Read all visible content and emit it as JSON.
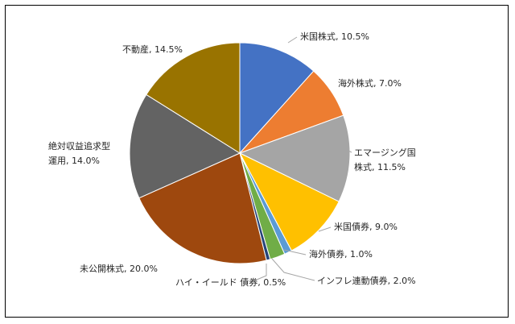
{
  "chart_data": {
    "type": "pie",
    "title": "",
    "slices": [
      {
        "label": "米国株式",
        "value": 10.5,
        "display": "米国株式, 10.5%",
        "color": "#4472C4"
      },
      {
        "label": "海外株式",
        "value": 7.0,
        "display": "海外株式, 7.0%",
        "color": "#ED7D31"
      },
      {
        "label": "エマージング国株式",
        "value": 11.5,
        "display_lines": [
          "エマージング国",
          "株式, 11.5%"
        ],
        "color": "#A5A5A5"
      },
      {
        "label": "米国債券",
        "value": 9.0,
        "display": "米国債券, 9.0%",
        "color": "#FFC000"
      },
      {
        "label": "海外債券",
        "value": 1.0,
        "display": "海外債券, 1.0%",
        "color": "#5B9BD5"
      },
      {
        "label": "インフレ連動債券",
        "value": 2.0,
        "display": "インフレ連動債券, 2.0%",
        "color": "#70AD47"
      },
      {
        "label": "ハイ・イールド債券",
        "value": 0.5,
        "display": "ハイ・イールド 債券, 0.5%",
        "color": "#264478"
      },
      {
        "label": "未公開株式",
        "value": 20.0,
        "display": "未公開株式, 20.0%",
        "color": "#9E480E"
      },
      {
        "label": "絶対収益追求型運用",
        "value": 14.0,
        "display_lines": [
          "絶対収益追求型",
          "運用, 14.0%"
        ],
        "color": "#636363"
      },
      {
        "label": "不動産",
        "value": 14.5,
        "display": "不動産, 14.5%",
        "color": "#997300"
      }
    ],
    "legend": "none"
  }
}
